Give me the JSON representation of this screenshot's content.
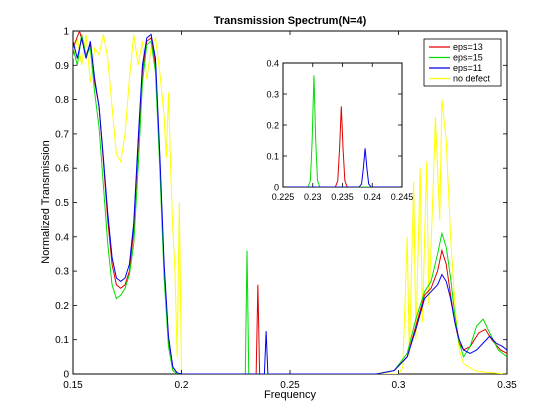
{
  "chart_data": [
    {
      "type": "line",
      "title": "Transmission Spectrum(N=4)",
      "xlabel": "Frequency",
      "ylabel": "Normalized Transmission",
      "xlim": [
        0.15,
        0.35
      ],
      "ylim": [
        0,
        1
      ],
      "xticks": [
        0.15,
        0.2,
        0.25,
        0.3,
        0.35
      ],
      "xtick_labels": [
        "0.15",
        "0.2",
        "0.25",
        "0.3",
        "0.35"
      ],
      "yticks": [
        0,
        0.1,
        0.2,
        0.3,
        0.4,
        0.5,
        0.6,
        0.7,
        0.8,
        0.9,
        1
      ],
      "ytick_labels": [
        "0",
        "0.1",
        "0.2",
        "0.3",
        "0.4",
        "0.5",
        "0.6",
        "0.7",
        "0.8",
        "0.9",
        "1"
      ],
      "legend_position": "top-right",
      "series": [
        {
          "name": "eps=13",
          "color": "#e00000",
          "points": [
            [
              0.15,
              0.95
            ],
            [
              0.153,
              1.0
            ],
            [
              0.156,
              0.93
            ],
            [
              0.158,
              0.96
            ],
            [
              0.16,
              0.85
            ],
            [
              0.162,
              0.78
            ],
            [
              0.164,
              0.62
            ],
            [
              0.166,
              0.45
            ],
            [
              0.168,
              0.32
            ],
            [
              0.17,
              0.26
            ],
            [
              0.172,
              0.25
            ],
            [
              0.174,
              0.26
            ],
            [
              0.176,
              0.3
            ],
            [
              0.178,
              0.42
            ],
            [
              0.18,
              0.66
            ],
            [
              0.182,
              0.88
            ],
            [
              0.184,
              0.97
            ],
            [
              0.186,
              0.98
            ],
            [
              0.188,
              0.9
            ],
            [
              0.19,
              0.62
            ],
            [
              0.192,
              0.3
            ],
            [
              0.194,
              0.1
            ],
            [
              0.196,
              0.02
            ],
            [
              0.198,
              0.003
            ],
            [
              0.2,
              0.0
            ],
            [
              0.233,
              0.0
            ],
            [
              0.2344,
              0.0
            ],
            [
              0.2352,
              0.26
            ],
            [
              0.236,
              0.0
            ],
            [
              0.29,
              0.0
            ],
            [
              0.298,
              0.01
            ],
            [
              0.304,
              0.05
            ],
            [
              0.308,
              0.14
            ],
            [
              0.312,
              0.23
            ],
            [
              0.315,
              0.25
            ],
            [
              0.318,
              0.3
            ],
            [
              0.32,
              0.36
            ],
            [
              0.322,
              0.32
            ],
            [
              0.324,
              0.23
            ],
            [
              0.326,
              0.15
            ],
            [
              0.328,
              0.09
            ],
            [
              0.33,
              0.07
            ],
            [
              0.333,
              0.08
            ],
            [
              0.337,
              0.12
            ],
            [
              0.34,
              0.13
            ],
            [
              0.343,
              0.1
            ],
            [
              0.347,
              0.07
            ],
            [
              0.35,
              0.06
            ]
          ]
        },
        {
          "name": "eps=15",
          "color": "#00dd00",
          "points": [
            [
              0.15,
              0.95
            ],
            [
              0.152,
              0.9
            ],
            [
              0.154,
              0.99
            ],
            [
              0.156,
              0.93
            ],
            [
              0.158,
              0.95
            ],
            [
              0.16,
              0.82
            ],
            [
              0.162,
              0.72
            ],
            [
              0.164,
              0.55
            ],
            [
              0.166,
              0.38
            ],
            [
              0.168,
              0.26
            ],
            [
              0.17,
              0.22
            ],
            [
              0.172,
              0.23
            ],
            [
              0.174,
              0.25
            ],
            [
              0.176,
              0.29
            ],
            [
              0.178,
              0.38
            ],
            [
              0.18,
              0.6
            ],
            [
              0.182,
              0.85
            ],
            [
              0.184,
              0.96
            ],
            [
              0.186,
              0.97
            ],
            [
              0.188,
              0.88
            ],
            [
              0.19,
              0.6
            ],
            [
              0.192,
              0.28
            ],
            [
              0.194,
              0.08
            ],
            [
              0.196,
              0.01
            ],
            [
              0.198,
              0.0
            ],
            [
              0.2294,
              0.0
            ],
            [
              0.2302,
              0.36
            ],
            [
              0.231,
              0.0
            ],
            [
              0.29,
              0.0
            ],
            [
              0.298,
              0.01
            ],
            [
              0.304,
              0.06
            ],
            [
              0.308,
              0.16
            ],
            [
              0.312,
              0.24
            ],
            [
              0.315,
              0.27
            ],
            [
              0.318,
              0.35
            ],
            [
              0.32,
              0.41
            ],
            [
              0.322,
              0.37
            ],
            [
              0.324,
              0.28
            ],
            [
              0.326,
              0.17
            ],
            [
              0.328,
              0.09
            ],
            [
              0.33,
              0.05
            ],
            [
              0.333,
              0.08
            ],
            [
              0.336,
              0.14
            ],
            [
              0.339,
              0.16
            ],
            [
              0.342,
              0.12
            ],
            [
              0.346,
              0.07
            ],
            [
              0.35,
              0.05
            ]
          ]
        },
        {
          "name": "eps=11",
          "color": "#0000ee",
          "points": [
            [
              0.15,
              0.97
            ],
            [
              0.152,
              0.92
            ],
            [
              0.154,
              0.98
            ],
            [
              0.156,
              0.92
            ],
            [
              0.158,
              0.97
            ],
            [
              0.16,
              0.86
            ],
            [
              0.162,
              0.78
            ],
            [
              0.164,
              0.63
            ],
            [
              0.166,
              0.47
            ],
            [
              0.168,
              0.34
            ],
            [
              0.17,
              0.28
            ],
            [
              0.172,
              0.27
            ],
            [
              0.174,
              0.28
            ],
            [
              0.176,
              0.32
            ],
            [
              0.178,
              0.44
            ],
            [
              0.18,
              0.68
            ],
            [
              0.182,
              0.9
            ],
            [
              0.184,
              0.98
            ],
            [
              0.186,
              0.99
            ],
            [
              0.188,
              0.92
            ],
            [
              0.19,
              0.64
            ],
            [
              0.192,
              0.32
            ],
            [
              0.194,
              0.11
            ],
            [
              0.196,
              0.02
            ],
            [
              0.198,
              0.003
            ],
            [
              0.2,
              0.0
            ],
            [
              0.2382,
              0.0
            ],
            [
              0.239,
              0.125
            ],
            [
              0.2398,
              0.0
            ],
            [
              0.29,
              0.0
            ],
            [
              0.298,
              0.01
            ],
            [
              0.304,
              0.05
            ],
            [
              0.308,
              0.13
            ],
            [
              0.312,
              0.22
            ],
            [
              0.315,
              0.24
            ],
            [
              0.318,
              0.26
            ],
            [
              0.32,
              0.29
            ],
            [
              0.322,
              0.27
            ],
            [
              0.324,
              0.22
            ],
            [
              0.326,
              0.15
            ],
            [
              0.328,
              0.1
            ],
            [
              0.33,
              0.07
            ],
            [
              0.333,
              0.06
            ],
            [
              0.336,
              0.07
            ],
            [
              0.339,
              0.09
            ],
            [
              0.342,
              0.11
            ],
            [
              0.345,
              0.09
            ],
            [
              0.348,
              0.08
            ],
            [
              0.35,
              0.07
            ]
          ]
        },
        {
          "name": "no defect",
          "color": "#ffff00",
          "points": [
            [
              0.15,
              0.92
            ],
            [
              0.152,
              0.98
            ],
            [
              0.154,
              0.9
            ],
            [
              0.156,
              0.99
            ],
            [
              0.158,
              0.85
            ],
            [
              0.16,
              0.95
            ],
            [
              0.162,
              0.93
            ],
            [
              0.164,
              0.99
            ],
            [
              0.166,
              0.92
            ],
            [
              0.168,
              0.78
            ],
            [
              0.17,
              0.64
            ],
            [
              0.172,
              0.62
            ],
            [
              0.174,
              0.7
            ],
            [
              0.176,
              0.86
            ],
            [
              0.178,
              0.99
            ],
            [
              0.18,
              0.9
            ],
            [
              0.182,
              0.97
            ],
            [
              0.184,
              0.86
            ],
            [
              0.186,
              0.95
            ],
            [
              0.188,
              0.98
            ],
            [
              0.19,
              0.88
            ],
            [
              0.192,
              0.75
            ],
            [
              0.193,
              0.63
            ],
            [
              0.194,
              0.82
            ],
            [
              0.195,
              0.6
            ],
            [
              0.196,
              0.42
            ],
            [
              0.197,
              0.3
            ],
            [
              0.198,
              0.05
            ],
            [
              0.199,
              0.5
            ],
            [
              0.2,
              0.0
            ],
            [
              0.3,
              0.0
            ],
            [
              0.302,
              0.02
            ],
            [
              0.304,
              0.4
            ],
            [
              0.305,
              0.05
            ],
            [
              0.307,
              0.56
            ],
            [
              0.308,
              0.1
            ],
            [
              0.31,
              0.6
            ],
            [
              0.311,
              0.15
            ],
            [
              0.313,
              0.62
            ],
            [
              0.314,
              0.2
            ],
            [
              0.316,
              0.55
            ],
            [
              0.317,
              0.75
            ],
            [
              0.319,
              0.45
            ],
            [
              0.32,
              0.8
            ],
            [
              0.322,
              0.68
            ],
            [
              0.324,
              0.4
            ],
            [
              0.326,
              0.2
            ],
            [
              0.328,
              0.07
            ],
            [
              0.33,
              0.03
            ],
            [
              0.335,
              0.01
            ],
            [
              0.34,
              0.005
            ],
            [
              0.35,
              0.0
            ]
          ]
        }
      ]
    },
    {
      "type": "line",
      "title": "",
      "xlim": [
        0.225,
        0.245
      ],
      "ylim": [
        0,
        0.4
      ],
      "xticks": [
        0.225,
        0.23,
        0.235,
        0.24,
        0.245
      ],
      "xtick_labels": [
        "0.225",
        "0.23",
        "0.235",
        "0.24",
        "0.245"
      ],
      "yticks": [
        0,
        0.1,
        0.2,
        0.3,
        0.4
      ],
      "ytick_labels": [
        "0",
        "0.1",
        "0.2",
        "0.3",
        "0.4"
      ],
      "series": [
        {
          "color": "#e00000",
          "points": [
            [
              0.225,
              0.0
            ],
            [
              0.2338,
              0.0
            ],
            [
              0.2342,
              0.02
            ],
            [
              0.2345,
              0.12
            ],
            [
              0.2348,
              0.26
            ],
            [
              0.2351,
              0.12
            ],
            [
              0.2354,
              0.02
            ],
            [
              0.2358,
              0.0
            ],
            [
              0.245,
              0.0
            ]
          ]
        },
        {
          "color": "#00dd00",
          "points": [
            [
              0.225,
              0.0
            ],
            [
              0.2292,
              0.0
            ],
            [
              0.2296,
              0.02
            ],
            [
              0.2299,
              0.15
            ],
            [
              0.2302,
              0.36
            ],
            [
              0.2305,
              0.15
            ],
            [
              0.2308,
              0.02
            ],
            [
              0.2312,
              0.0
            ],
            [
              0.245,
              0.0
            ]
          ]
        },
        {
          "color": "#0000ee",
          "points": [
            [
              0.225,
              0.0
            ],
            [
              0.2378,
              0.0
            ],
            [
              0.2382,
              0.01
            ],
            [
              0.2385,
              0.06
            ],
            [
              0.2388,
              0.125
            ],
            [
              0.2391,
              0.06
            ],
            [
              0.2394,
              0.01
            ],
            [
              0.2398,
              0.0
            ],
            [
              0.245,
              0.0
            ]
          ]
        }
      ]
    }
  ]
}
